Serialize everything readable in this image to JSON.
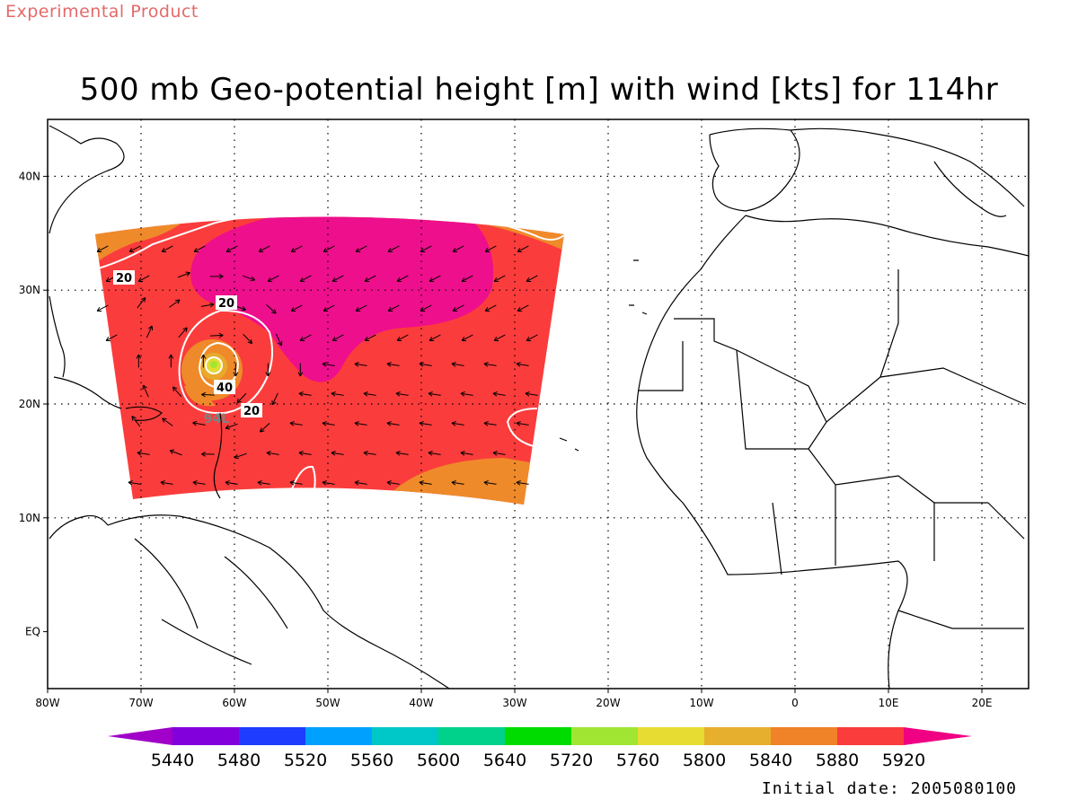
{
  "header": {
    "watermark": "Experimental Product",
    "title": "500 mb Geo-potential height [m] with wind [kts] for 114hr"
  },
  "footer": {
    "initial_date": "Initial date: 2005080100"
  },
  "map": {
    "extent": {
      "lon_min": -80,
      "lon_max": 25,
      "lat_min": -5,
      "lat_max": 45
    },
    "grid_lons": [
      -70,
      -60,
      -50,
      -40,
      -30,
      -20,
      -10,
      0,
      10,
      20
    ],
    "grid_lats": [
      10,
      20,
      30,
      40
    ],
    "lon_tick_labels": [
      "80W",
      "70W",
      "60W",
      "50W",
      "40W",
      "30W",
      "20W",
      "10W",
      "0",
      "10E",
      "20E"
    ],
    "lat_tick_labels": [
      "EQ",
      "10N",
      "20N",
      "30N",
      "40N"
    ],
    "lat_tick_values": [
      0,
      10,
      20,
      30,
      40
    ],
    "grid": true,
    "storm_label": "94L",
    "contour_labels": [
      "20",
      "20",
      "40",
      "20"
    ],
    "fill_colors": {
      "background_level": "#fb3c3c",
      "high_level": "#ee0f8c",
      "orange_level": "#ef8a2a",
      "gold_level": "#e8aa2c",
      "yellow_level": "#e3dc32",
      "green_level": "#a0e632",
      "contour_line": "#ffffff",
      "land_outline": "#000000"
    }
  },
  "colorbar": {
    "levels": [
      "5440",
      "5480",
      "5520",
      "5560",
      "5600",
      "5640",
      "5720",
      "5760",
      "5800",
      "5840",
      "5880",
      "5920"
    ],
    "colors": [
      "#a000c8",
      "#8200dc",
      "#1e3cff",
      "#00a0ff",
      "#00c8c8",
      "#00d28c",
      "#00dc00",
      "#a0e632",
      "#e6dc32",
      "#e6af2d",
      "#f08228",
      "#fa3c3c",
      "#f00082"
    ]
  }
}
